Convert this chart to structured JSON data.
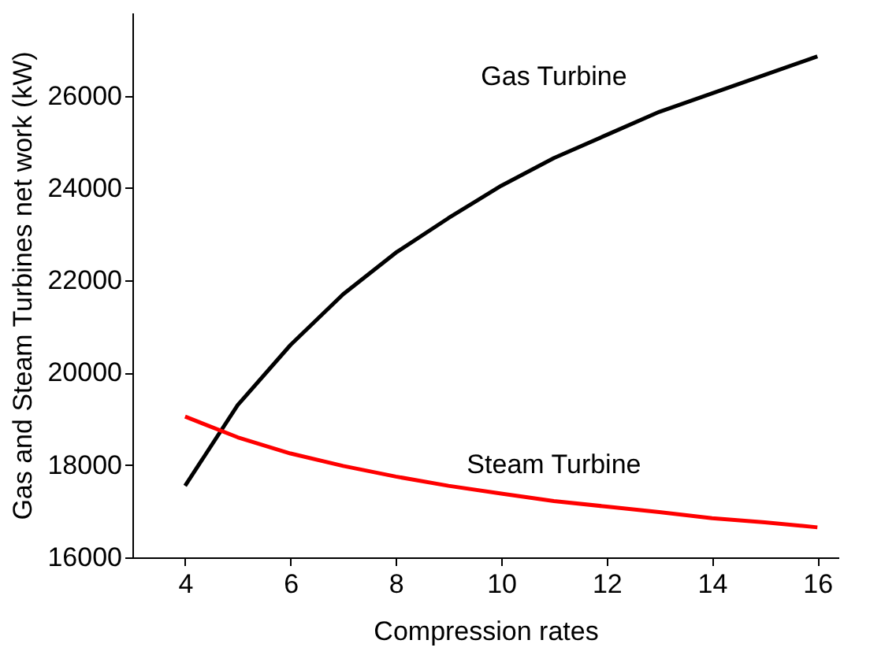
{
  "chart_data": {
    "type": "line",
    "xlabel": "Compression rates",
    "ylabel": "Gas and Steam Turbines net work (kW)",
    "x": [
      4,
      5,
      6,
      7,
      8,
      9,
      10,
      11,
      12,
      13,
      14,
      15,
      16
    ],
    "series": [
      {
        "name": "Gas Turbine",
        "color": "#000000",
        "values": [
          17550,
          19300,
          20600,
          21700,
          22600,
          23350,
          24050,
          24650,
          25150,
          25650,
          26050,
          26450,
          26850
        ]
      },
      {
        "name": "Steam Turbine",
        "color": "#ff0000",
        "values": [
          19050,
          18600,
          18250,
          17980,
          17750,
          17550,
          17380,
          17220,
          17100,
          16980,
          16850,
          16760,
          16650
        ]
      }
    ],
    "xlim": [
      3,
      16.4
    ],
    "ylim": [
      16000,
      27800
    ],
    "xticks": [
      4,
      6,
      8,
      10,
      12,
      14,
      16
    ],
    "yticks": [
      16000,
      18000,
      20000,
      22000,
      24000,
      26000
    ],
    "grid": false,
    "legend": false,
    "marker": "none",
    "line_style": "solid"
  }
}
